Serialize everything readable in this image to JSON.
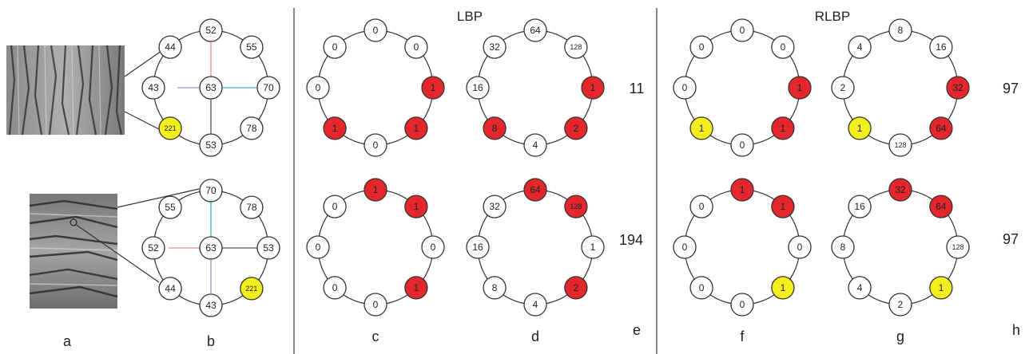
{
  "section_titles": {
    "lbp": "LBP",
    "rlbp": "RLBP"
  },
  "panel_labels": {
    "a": "a",
    "b": "b",
    "c": "c",
    "d": "d",
    "e": "e",
    "f": "f",
    "g": "g",
    "h": "h"
  },
  "codes": {
    "lbp_top": "11",
    "lbp_bottom": "194",
    "rlbp_top": "97",
    "rlbp_bottom": "97"
  },
  "colors": {
    "red": "#e3272c",
    "yellow": "#f4ee1e",
    "white": "#ffffff",
    "edge": "#333333",
    "line_red": "#e0908c",
    "line_purple": "#a98fd0",
    "line_teal": "#3fa9c9",
    "line_gray": "#555555"
  },
  "circles": [
    {
      "name": "circle-b-top",
      "center": "63",
      "nodes": [
        {
          "label": "52",
          "fill": "white"
        },
        {
          "label": "55",
          "fill": "white"
        },
        {
          "label": "70",
          "fill": "white"
        },
        {
          "label": "78",
          "fill": "white"
        },
        {
          "label": "53",
          "fill": "white"
        },
        {
          "label": "221",
          "fill": "yellow"
        },
        {
          "label": "43",
          "fill": "white"
        },
        {
          "label": "44",
          "fill": "white"
        }
      ]
    },
    {
      "name": "circle-b-bottom",
      "center": "63",
      "nodes": [
        {
          "label": "70",
          "fill": "white"
        },
        {
          "label": "78",
          "fill": "white"
        },
        {
          "label": "53",
          "fill": "white"
        },
        {
          "label": "221",
          "fill": "yellow"
        },
        {
          "label": "43",
          "fill": "white"
        },
        {
          "label": "44",
          "fill": "white"
        },
        {
          "label": "52",
          "fill": "white"
        },
        {
          "label": "55",
          "fill": "white"
        }
      ]
    },
    {
      "name": "circle-c-top",
      "nodes": [
        {
          "label": "0",
          "fill": "white"
        },
        {
          "label": "0",
          "fill": "white"
        },
        {
          "label": "1",
          "fill": "red"
        },
        {
          "label": "1",
          "fill": "red"
        },
        {
          "label": "0",
          "fill": "white"
        },
        {
          "label": "1",
          "fill": "red"
        },
        {
          "label": "0",
          "fill": "white"
        },
        {
          "label": "0",
          "fill": "white"
        }
      ]
    },
    {
      "name": "circle-d-top",
      "nodes": [
        {
          "label": "64",
          "fill": "white"
        },
        {
          "label": "128",
          "fill": "white"
        },
        {
          "label": "1",
          "fill": "red"
        },
        {
          "label": "2",
          "fill": "red"
        },
        {
          "label": "4",
          "fill": "white"
        },
        {
          "label": "8",
          "fill": "red"
        },
        {
          "label": "16",
          "fill": "white"
        },
        {
          "label": "32",
          "fill": "white"
        }
      ]
    },
    {
      "name": "circle-c-bottom",
      "nodes": [
        {
          "label": "1",
          "fill": "red"
        },
        {
          "label": "1",
          "fill": "red"
        },
        {
          "label": "0",
          "fill": "white"
        },
        {
          "label": "1",
          "fill": "red"
        },
        {
          "label": "0",
          "fill": "white"
        },
        {
          "label": "0",
          "fill": "white"
        },
        {
          "label": "0",
          "fill": "white"
        },
        {
          "label": "0",
          "fill": "white"
        }
      ]
    },
    {
      "name": "circle-d-bottom",
      "nodes": [
        {
          "label": "64",
          "fill": "red"
        },
        {
          "label": "128",
          "fill": "red"
        },
        {
          "label": "1",
          "fill": "white"
        },
        {
          "label": "2",
          "fill": "red"
        },
        {
          "label": "4",
          "fill": "white"
        },
        {
          "label": "8",
          "fill": "white"
        },
        {
          "label": "16",
          "fill": "white"
        },
        {
          "label": "32",
          "fill": "white"
        }
      ]
    },
    {
      "name": "circle-f-top",
      "nodes": [
        {
          "label": "0",
          "fill": "white"
        },
        {
          "label": "0",
          "fill": "white"
        },
        {
          "label": "1",
          "fill": "red"
        },
        {
          "label": "1",
          "fill": "red"
        },
        {
          "label": "0",
          "fill": "white"
        },
        {
          "label": "1",
          "fill": "yellow"
        },
        {
          "label": "0",
          "fill": "white"
        },
        {
          "label": "0",
          "fill": "white"
        }
      ]
    },
    {
      "name": "circle-g-top",
      "nodes": [
        {
          "label": "8",
          "fill": "white"
        },
        {
          "label": "16",
          "fill": "white"
        },
        {
          "label": "32",
          "fill": "red"
        },
        {
          "label": "64",
          "fill": "red"
        },
        {
          "label": "128",
          "fill": "white"
        },
        {
          "label": "1",
          "fill": "yellow"
        },
        {
          "label": "2",
          "fill": "white"
        },
        {
          "label": "4",
          "fill": "white"
        }
      ]
    },
    {
      "name": "circle-f-bottom",
      "nodes": [
        {
          "label": "1",
          "fill": "red"
        },
        {
          "label": "1",
          "fill": "red"
        },
        {
          "label": "0",
          "fill": "white"
        },
        {
          "label": "1",
          "fill": "yellow"
        },
        {
          "label": "0",
          "fill": "white"
        },
        {
          "label": "0",
          "fill": "white"
        },
        {
          "label": "0",
          "fill": "white"
        },
        {
          "label": "0",
          "fill": "white"
        }
      ]
    },
    {
      "name": "circle-g-bottom",
      "nodes": [
        {
          "label": "32",
          "fill": "red"
        },
        {
          "label": "64",
          "fill": "red"
        },
        {
          "label": "128",
          "fill": "white"
        },
        {
          "label": "1",
          "fill": "yellow"
        },
        {
          "label": "2",
          "fill": "white"
        },
        {
          "label": "4",
          "fill": "white"
        },
        {
          "label": "8",
          "fill": "white"
        },
        {
          "label": "16",
          "fill": "white"
        }
      ]
    }
  ]
}
